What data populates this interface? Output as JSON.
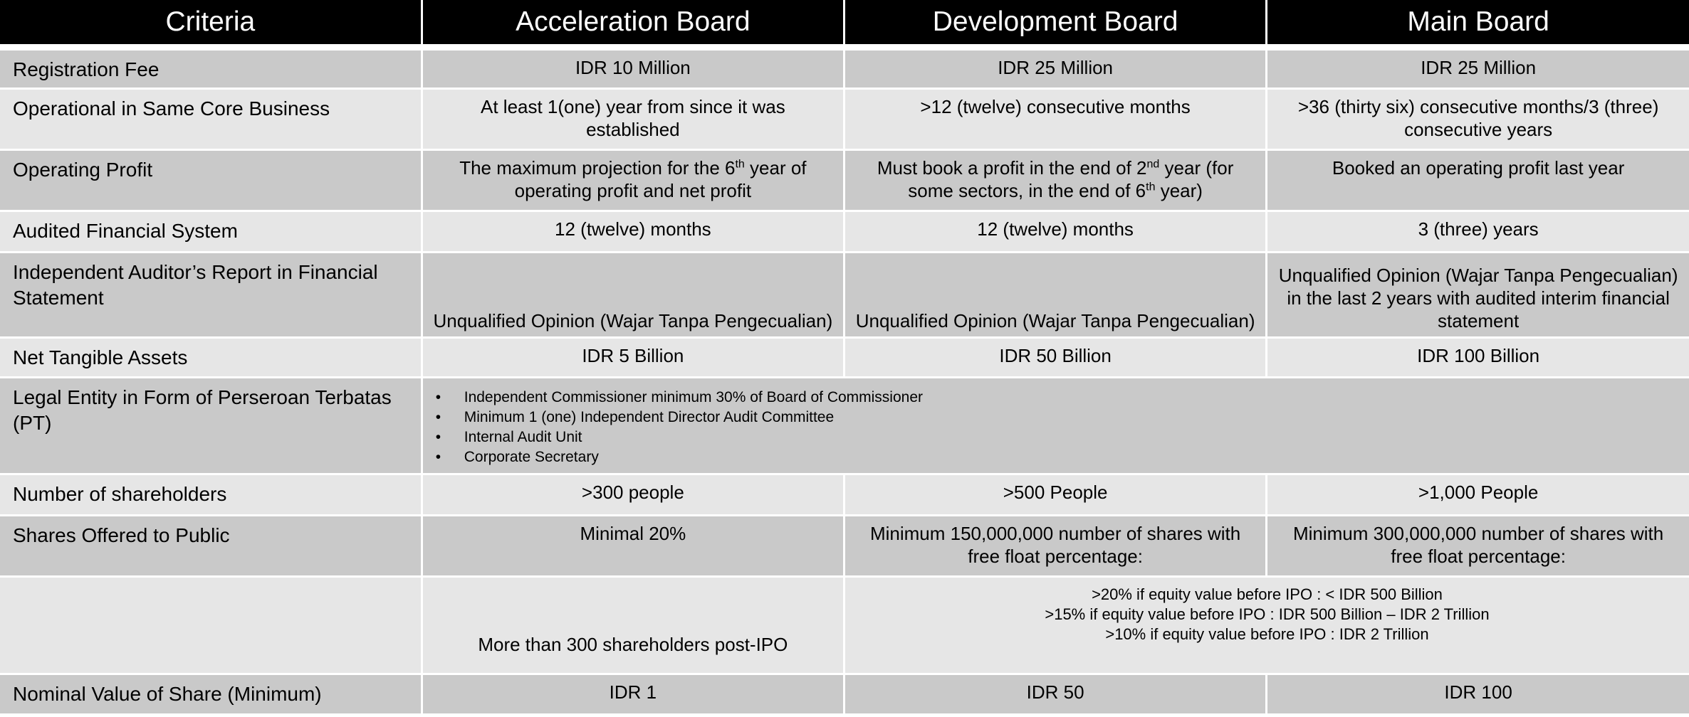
{
  "headers": [
    "Criteria",
    "Acceleration Board",
    "Development Board",
    "Main Board"
  ],
  "rows": {
    "registration_fee": {
      "criteria": "Registration Fee",
      "acceleration": "IDR 10 Million",
      "development": "IDR 25 Million",
      "main": "IDR 25 Million"
    },
    "operational": {
      "criteria": "Operational in Same Core Business",
      "acceleration": "At least 1(one) year from since it was established",
      "development": ">12 (twelve) consecutive months",
      "main": ">36 (thirty six) consecutive months/3 (three) consecutive years"
    },
    "operating_profit": {
      "criteria": "Operating Profit",
      "acceleration": {
        "pre": "The maximum projection for the 6",
        "sup": "th",
        "post": " year of operating profit and net profit"
      },
      "development": {
        "pre": "Must book a profit in the end of 2",
        "sup": "nd",
        "mid": " year (for some sectors, in the end of 6",
        "sup2": "th",
        "post": " year)"
      },
      "main": "Booked an operating profit last year"
    },
    "audited_fs": {
      "criteria": "Audited Financial System",
      "acceleration": "12 (twelve) months",
      "development": "12 (twelve) months",
      "main": "3 (three) years"
    },
    "auditor_report": {
      "criteria": "Independent Auditor’s Report in Financial Statement",
      "acceleration": "Unqualified Opinion (Wajar Tanpa Pengecualian)",
      "development": "Unqualified Opinion (Wajar Tanpa Pengecualian)",
      "main": "Unqualified Opinion (Wajar Tanpa Pengecualian) in the last 2 years with audited interim financial statement"
    },
    "net_tangible_assets": {
      "criteria": "Net Tangible Assets",
      "acceleration": "IDR 5 Billion",
      "development": "IDR 50 Billion",
      "main": "IDR 100 Billion"
    },
    "legal_entity": {
      "criteria": "Legal Entity in Form of Perseroan Terbatas (PT)",
      "bullet_symbol": "•",
      "bullets": [
        "Independent Commissioner minimum 30% of Board of Commissioner",
        "Minimum 1 (one) Independent Director Audit Committee",
        "Internal Audit Unit",
        "Corporate Secretary"
      ]
    },
    "shareholders": {
      "criteria": "Number of shareholders",
      "acceleration": ">300 people",
      "development": ">500 People",
      "main": ">1,000 People"
    },
    "shares_offered": {
      "criteria": "Shares Offered to Public",
      "acceleration": "Minimal 20%",
      "development": "Minimum 150,000,000 number of shares with free float percentage:",
      "main": "Minimum 300,000,000 number of shares with free float percentage:"
    },
    "free_float": {
      "criteria": "",
      "acceleration": "More than 300 shareholders post-IPO",
      "lines": [
        ">20% if equity value before IPO : < IDR 500 Billion",
        ">15% if equity value before IPO :  IDR 500 Billion – IDR 2 Trillion",
        ">10% if equity value before IPO : IDR 2 Trillion"
      ]
    },
    "nominal_value": {
      "criteria": "Nominal Value of Share (Minimum)",
      "acceleration": "IDR 1",
      "development": "IDR 50",
      "main": "IDR 100"
    }
  }
}
